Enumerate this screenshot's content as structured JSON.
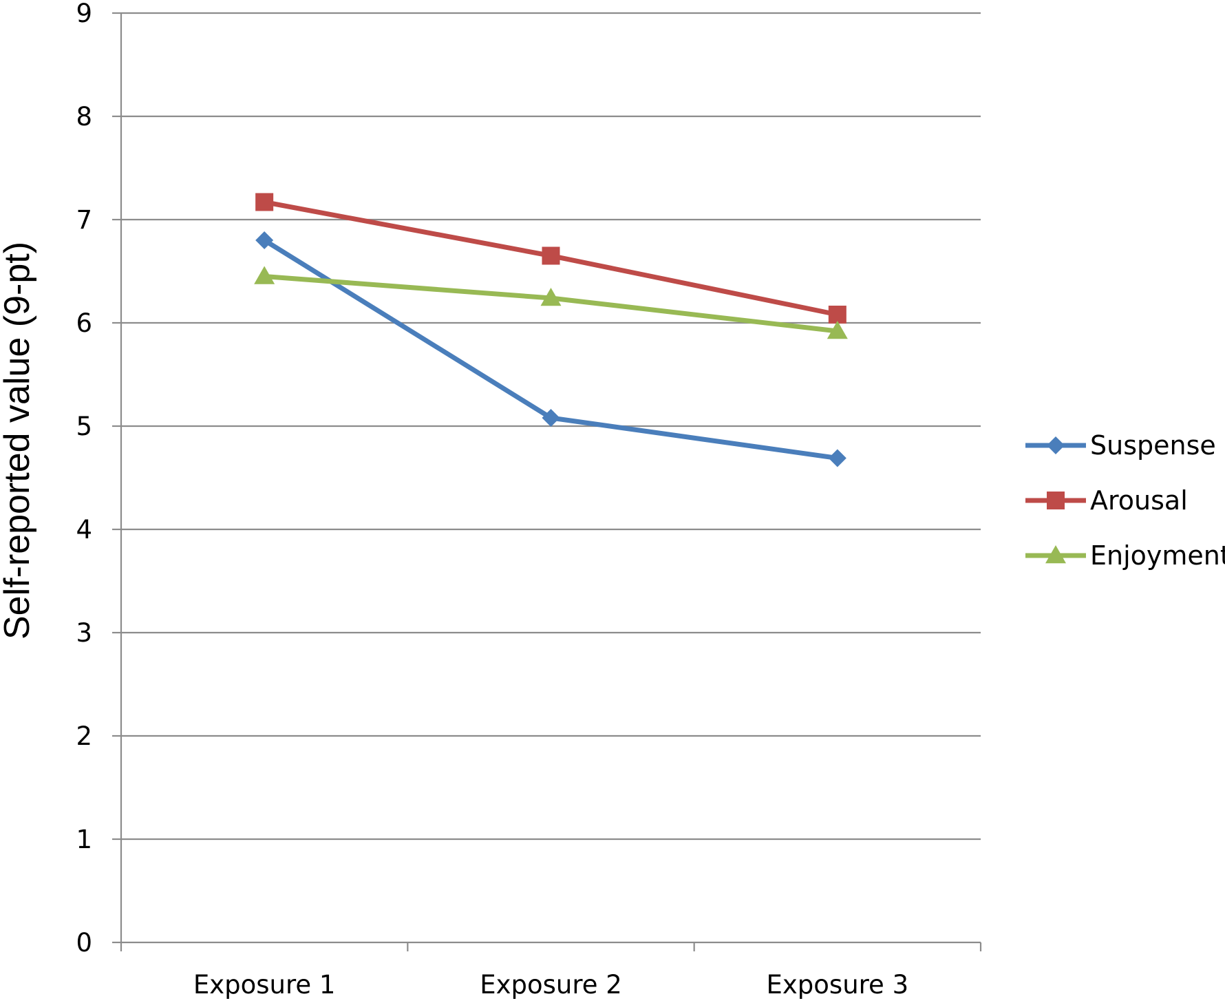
{
  "chart_data": {
    "type": "line",
    "title": "",
    "xlabel": "",
    "ylabel": "Self-reported value (9-pt)",
    "ylim": [
      0,
      9
    ],
    "yticks": [
      0,
      1,
      2,
      3,
      4,
      5,
      6,
      7,
      8,
      9
    ],
    "grid": true,
    "legend_position": "right",
    "categories": [
      "Exposure 1",
      "Exposure 2",
      "Exposure 3"
    ],
    "series": [
      {
        "name": "Suspense",
        "color": "#4a7ebb",
        "marker": "diamond",
        "values": [
          6.8,
          5.08,
          4.69
        ]
      },
      {
        "name": "Arousal",
        "color": "#be4b48",
        "marker": "square",
        "values": [
          7.17,
          6.65,
          6.08
        ]
      },
      {
        "name": "Enjoyment",
        "color": "#98b954",
        "marker": "triangle",
        "values": [
          6.45,
          6.24,
          5.92
        ]
      }
    ]
  }
}
